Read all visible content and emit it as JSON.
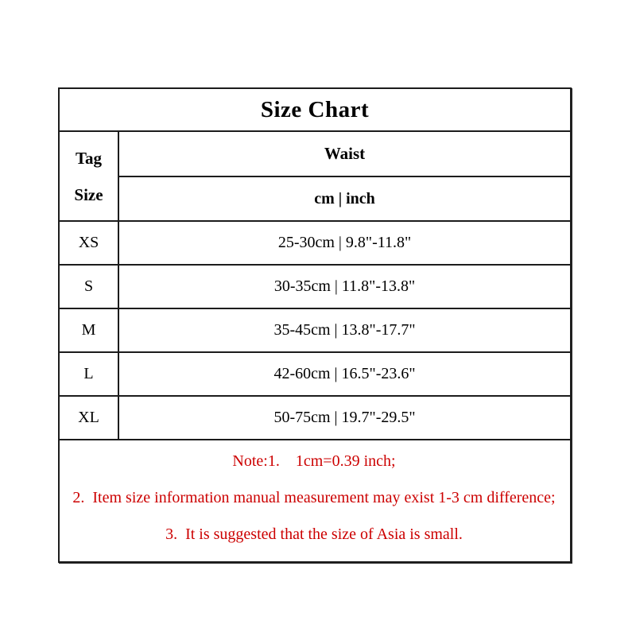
{
  "table": {
    "title": "Size Chart",
    "header": {
      "tag_line1": "Tag",
      "tag_line2": "Size",
      "waist_label": "Waist",
      "unit_label": "cm | inch"
    },
    "rows": [
      {
        "size": "XS",
        "waist": "25-30cm | 9.8\"-11.8\""
      },
      {
        "size": "S",
        "waist": "30-35cm | 11.8\"-13.8\""
      },
      {
        "size": "M",
        "waist": "35-45cm | 13.8\"-17.7\""
      },
      {
        "size": "L",
        "waist": "42-60cm | 16.5\"-23.6\""
      },
      {
        "size": "XL",
        "waist": "50-75cm | 19.7\"-29.5\""
      }
    ],
    "notes": [
      "Note:1.    1cm=0.39 inch;",
      "2.  Item size information manual measurement may exist 1-3 cm difference;",
      "3.  It is suggested that the size of Asia is small."
    ],
    "colors": {
      "note_text": "#cc0000",
      "border": "#1c1c1c",
      "text": "#000000",
      "background": "#ffffff"
    }
  }
}
